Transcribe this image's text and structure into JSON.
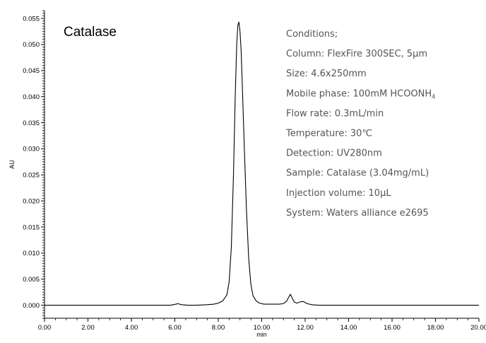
{
  "chart_data": {
    "type": "line",
    "title": "Catalase",
    "xlabel": "min",
    "ylabel": "AU",
    "xlim": [
      0,
      20
    ],
    "ylim": [
      -0.0025,
      0.0565
    ],
    "x_ticks": [
      "0.00",
      "2.00",
      "4.00",
      "6.00",
      "8.00",
      "10.00",
      "12.00",
      "14.00",
      "16.00",
      "18.00",
      "20.00"
    ],
    "y_ticks": [
      "0.000",
      "0.005",
      "0.010",
      "0.015",
      "0.020",
      "0.025",
      "0.030",
      "0.035",
      "0.040",
      "0.045",
      "0.050",
      "0.055"
    ],
    "grid": false,
    "line_color": "#000000",
    "series": [
      {
        "x": [
          0,
          1,
          2,
          3,
          4,
          5,
          5.8,
          6.05,
          6.15,
          6.3,
          6.6,
          7,
          7.5,
          7.8,
          8.0,
          8.2,
          8.4,
          8.5,
          8.6,
          8.7,
          8.78,
          8.85,
          8.9,
          8.95,
          9.0,
          9.05,
          9.1,
          9.2,
          9.3,
          9.4,
          9.5,
          9.6,
          9.75,
          9.9,
          10.1,
          10.4,
          10.8,
          11.0,
          11.15,
          11.25,
          11.32,
          11.4,
          11.5,
          11.62,
          11.75,
          11.85,
          11.93,
          12.0,
          12.1,
          12.3,
          12.6,
          13,
          14,
          15,
          16,
          17,
          18,
          19,
          20
        ],
        "y": [
          0.0,
          0.0,
          0.0,
          0.0,
          0.0,
          0.0,
          0.0,
          0.0002,
          0.0003,
          0.0001,
          0.0,
          0.0,
          0.0001,
          0.0002,
          0.0004,
          0.0008,
          0.002,
          0.0045,
          0.011,
          0.025,
          0.04,
          0.05,
          0.0537,
          0.0543,
          0.0525,
          0.049,
          0.043,
          0.03,
          0.018,
          0.009,
          0.004,
          0.0018,
          0.0008,
          0.0004,
          0.0002,
          0.0002,
          0.0002,
          0.0003,
          0.0008,
          0.0016,
          0.0021,
          0.0014,
          0.0006,
          0.0004,
          0.0006,
          0.0007,
          0.0007,
          0.0005,
          0.0003,
          0.0001,
          0.0,
          0.0,
          0.0,
          0.0,
          0.0,
          0.0,
          0.0,
          0.0,
          0.0
        ]
      }
    ]
  },
  "conditions": [
    {
      "text": "Conditions;"
    },
    {
      "text": "Column: FlexFire 300SEC, 5μm"
    },
    {
      "text": "Size: 4.6x250mm"
    },
    {
      "text": "Mobile phase: 100mM HCOONH",
      "sub": "4"
    },
    {
      "text": "Flow rate: 0.3mL/min"
    },
    {
      "text": "Temperature: 30℃"
    },
    {
      "text": "Detection: UV280nm"
    },
    {
      "text": "Sample: Catalase (3.04mg/mL)"
    },
    {
      "text": "Injection volume: 10μL"
    },
    {
      "text": " System: Waters alliance e2695"
    }
  ]
}
